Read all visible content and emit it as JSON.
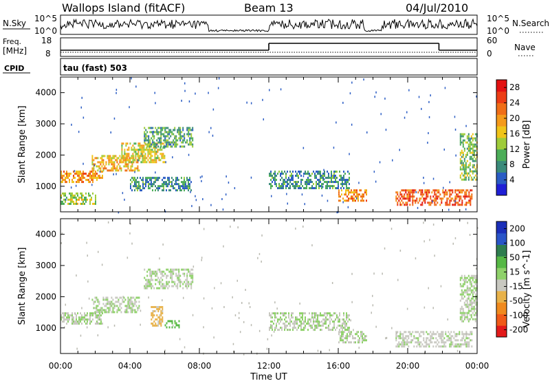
{
  "header": {
    "station": "Wallops Island (fitACF)",
    "beam": "Beam 13",
    "date": "04/Jul/2010"
  },
  "noise_panel": {
    "left_label": "N.Sky",
    "right_label": "N.Search",
    "tick_top": "10^5",
    "tick_bottom": "10^0"
  },
  "freq_panel": {
    "left_label_1": "Freq.",
    "left_label_2": "[MHz]",
    "left_tick_top": "18",
    "left_tick_bottom": "8",
    "right_label": "Nave",
    "right_tick_top": "60",
    "right_tick_bottom": "0"
  },
  "cpid": {
    "label": "CPID",
    "value": "tau (fast) 503"
  },
  "colors": {
    "power_scale": [
      "#1f1fd6",
      "#2a5cc4",
      "#3a8a7a",
      "#4cad58",
      "#9fcc3a",
      "#f0c419",
      "#f59a1a",
      "#f06e17",
      "#ec3d15",
      "#e31111"
    ],
    "velocity_scale": [
      "#1b2fb8",
      "#2a55c8",
      "#2f7d4f",
      "#56b845",
      "#8fd16a",
      "#c8c8c0",
      "#e8b24a",
      "#f08a1e",
      "#f05a18",
      "#e31a1a"
    ],
    "ground_scatter": "#b9b9b0"
  },
  "chart_data": [
    {
      "type": "heatmap",
      "panel": "power",
      "xlabel": "Time UT",
      "ylabel": "Slant Range [km]",
      "x_ticks": [
        "00:00",
        "04:00",
        "08:00",
        "12:00",
        "16:00",
        "20:00",
        "00:00"
      ],
      "xlim_hours": [
        0,
        24
      ],
      "y_ticks": [
        1000,
        2000,
        3000,
        4000
      ],
      "ylim": [
        180,
        4500
      ],
      "colorbar_label": "Power [dB]",
      "colorbar_ticks": [
        4,
        8,
        12,
        16,
        20,
        24,
        28
      ],
      "colorbar_range": [
        0,
        30
      ],
      "echo_regions": [
        {
          "t": [
            0.0,
            2.4
          ],
          "r": [
            1150,
            1500
          ],
          "value": 20
        },
        {
          "t": [
            0.0,
            2.0
          ],
          "r": [
            450,
            800
          ],
          "value": 14
        },
        {
          "t": [
            1.8,
            4.5
          ],
          "r": [
            1500,
            2000
          ],
          "value": 18
        },
        {
          "t": [
            3.5,
            6.0
          ],
          "r": [
            1800,
            2400
          ],
          "value": 16
        },
        {
          "t": [
            4.8,
            7.6
          ],
          "r": [
            2300,
            2900
          ],
          "value": 10
        },
        {
          "t": [
            4.0,
            7.5
          ],
          "r": [
            900,
            1300
          ],
          "value": 8
        },
        {
          "t": [
            12.0,
            16.6
          ],
          "r": [
            950,
            1500
          ],
          "value": 8
        },
        {
          "t": [
            16.0,
            17.6
          ],
          "r": [
            550,
            900
          ],
          "value": 20
        },
        {
          "t": [
            19.3,
            23.7
          ],
          "r": [
            400,
            900
          ],
          "value": 24
        },
        {
          "t": [
            23.0,
            24.0
          ],
          "r": [
            1200,
            2700
          ],
          "value": 12
        }
      ]
    },
    {
      "type": "heatmap",
      "panel": "velocity",
      "xlabel": "Time UT",
      "ylabel": "Slant Range [km]",
      "x_ticks": [
        "00:00",
        "04:00",
        "08:00",
        "12:00",
        "16:00",
        "20:00",
        "00:00"
      ],
      "xlim_hours": [
        0,
        24
      ],
      "y_ticks": [
        1000,
        2000,
        3000,
        4000
      ],
      "ylim": [
        180,
        4500
      ],
      "colorbar_label": "Velocity [m s^-1]",
      "colorbar_ticks": [
        200,
        100,
        50,
        15,
        -15,
        -50,
        -100,
        -200
      ],
      "colorbar_range": [
        -250,
        250
      ],
      "echo_regions": [
        {
          "t": [
            0.0,
            2.4
          ],
          "r": [
            1150,
            1500
          ],
          "value": 0
        },
        {
          "t": [
            1.8,
            4.5
          ],
          "r": [
            1500,
            2000
          ],
          "value": 0
        },
        {
          "t": [
            4.8,
            7.6
          ],
          "r": [
            2300,
            2900
          ],
          "value": 0
        },
        {
          "t": [
            5.2,
            5.9
          ],
          "r": [
            1100,
            1700
          ],
          "value": -60
        },
        {
          "t": [
            6.0,
            6.8
          ],
          "r": [
            1050,
            1250
          ],
          "value": 60
        },
        {
          "t": [
            12.0,
            16.6
          ],
          "r": [
            950,
            1500
          ],
          "value": 0
        },
        {
          "t": [
            16.0,
            17.6
          ],
          "r": [
            550,
            900
          ],
          "value": 0
        },
        {
          "t": [
            19.3,
            23.7
          ],
          "r": [
            400,
            900
          ],
          "value": -10
        },
        {
          "t": [
            23.0,
            24.0
          ],
          "r": [
            1200,
            2700
          ],
          "value": 0
        }
      ]
    }
  ]
}
